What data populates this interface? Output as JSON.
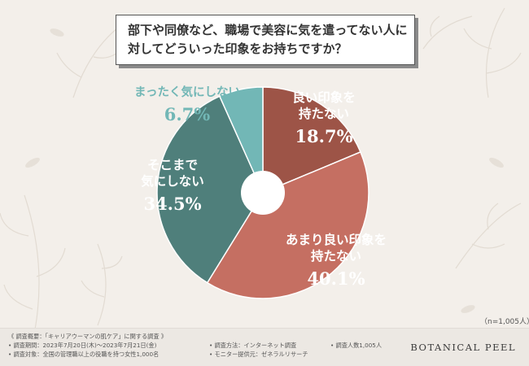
{
  "title": {
    "line1": "部下や同僚など、職場で美容に気を遣ってない人に",
    "line2": "対してどういった印象をお持ちですか？"
  },
  "colors": {
    "background": "#f3efea",
    "teal_light": "#72b7b6",
    "brown": "#9d5447",
    "salmon": "#c56f62",
    "teal_dark": "#4f7f7b"
  },
  "chart_data": {
    "type": "pie",
    "variant": "donut",
    "title": "部下や同僚など、職場で美容に気を遣ってない人に対してどういった印象をお持ちですか？",
    "slices": [
      {
        "label_lines": [
          "良い印象を",
          "持たない"
        ],
        "value": 18.7,
        "value_text": "18.7%",
        "color": "#9d5447"
      },
      {
        "label_lines": [
          "あまり良い印象を",
          "持たない"
        ],
        "value": 40.1,
        "value_text": "40.1%",
        "color": "#c56f62"
      },
      {
        "label_lines": [
          "そこまで",
          "気にしない"
        ],
        "value": 34.5,
        "value_text": "34.5%",
        "color": "#4f7f7b"
      },
      {
        "label_lines": [
          "まったく気にしない"
        ],
        "value": 6.7,
        "value_text": "6.7%",
        "color": "#72b7b6"
      }
    ]
  },
  "sample_size": "（n=1,005人）",
  "footer": {
    "overview": "《 調査概要：「キャリアウーマンの肌ケア」に関する調査 》",
    "period": "• 調査期間：2023年7月20日(木)～2023年7月21日(金)",
    "target": "• 調査対象：全国の管理職以上の役職を持つ女性1,000名",
    "method": "• 調査方法：インターネット調査",
    "provider": "• モニター提供元：ゼネラルリサーチ",
    "count": "• 調査人数1,005人",
    "brand": "BOTANICAL PEEL"
  }
}
